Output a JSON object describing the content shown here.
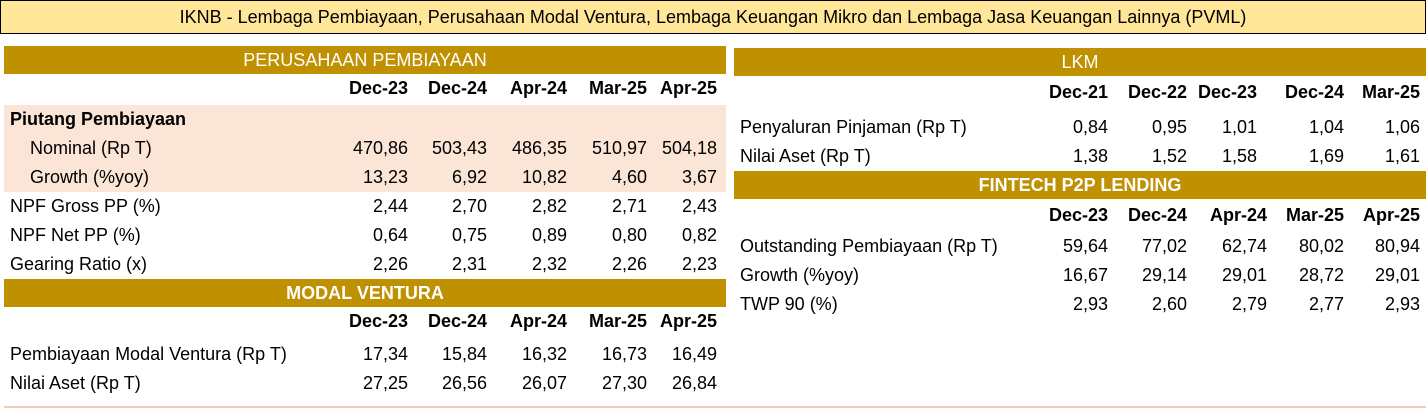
{
  "title": "IKNB - Lembaga Pembiayaan, Perusahaan Modal Ventura, Lembaga Keuangan Mikro dan Lembaga Jasa Keuangan Lainnya (PVML)",
  "pp": {
    "header": "PERUSAHAAN PEMBIAYAAN",
    "periods": [
      "Dec-23",
      "Dec-24",
      "Apr-24",
      "Mar-25",
      "Apr-25"
    ],
    "section_label": "Piutang Pembiayaan",
    "rows": [
      {
        "label": "Nominal (Rp T)",
        "values": [
          "470,86",
          "503,43",
          "486,35",
          "510,97",
          "504,18"
        ]
      },
      {
        "label": "Growth (%yoy)",
        "values": [
          "13,23",
          "6,92",
          "10,82",
          "4,60",
          "3,67"
        ]
      },
      {
        "label": "NPF Gross PP (%)",
        "values": [
          "2,44",
          "2,70",
          "2,82",
          "2,71",
          "2,43"
        ]
      },
      {
        "label": "NPF Net PP (%)",
        "values": [
          "0,64",
          "0,75",
          "0,89",
          "0,80",
          "0,82"
        ]
      },
      {
        "label": "Gearing Ratio (x)",
        "values": [
          "2,26",
          "2,31",
          "2,32",
          "2,26",
          "2,23"
        ]
      }
    ]
  },
  "mv": {
    "header": "MODAL VENTURA",
    "periods": [
      "Dec-23",
      "Dec-24",
      "Apr-24",
      "Mar-25",
      "Apr-25"
    ],
    "rows": [
      {
        "label": "Pembiayaan Modal Ventura (Rp T)",
        "values": [
          "17,34",
          "15,84",
          "16,32",
          "16,73",
          "16,49"
        ]
      },
      {
        "label": "Nilai Aset (Rp T)",
        "values": [
          "27,25",
          "26,56",
          "26,07",
          "27,30",
          "26,84"
        ]
      }
    ]
  },
  "lkm": {
    "header": "LKM",
    "periods": [
      "Dec-21",
      "Dec-22",
      "Dec-23",
      "Dec-24",
      "Mar-25"
    ],
    "rows": [
      {
        "label": "Penyaluran Pinjaman (Rp T)",
        "values": [
          "0,84",
          "0,95",
          "1,01",
          "1,04",
          "1,06"
        ]
      },
      {
        "label": "Nilai Aset (Rp T)",
        "values": [
          "1,38",
          "1,52",
          "1,58",
          "1,69",
          "1,61"
        ]
      }
    ]
  },
  "p2p": {
    "header": "FINTECH P2P LENDING",
    "periods": [
      "Dec-23",
      "Dec-24",
      "Apr-24",
      "Mar-25",
      "Apr-25"
    ],
    "rows": [
      {
        "label": "Outstanding Pembiayaan (Rp T)",
        "values": [
          "59,64",
          "77,02",
          "62,74",
          "80,02",
          "80,94"
        ]
      },
      {
        "label": "Growth (%yoy)",
        "values": [
          "16,67",
          "29,14",
          "29,01",
          "28,72",
          "29,01"
        ]
      },
      {
        "label": "TWP 90 (%)",
        "values": [
          "2,93",
          "2,60",
          "2,79",
          "2,77",
          "2,93"
        ]
      }
    ]
  }
}
